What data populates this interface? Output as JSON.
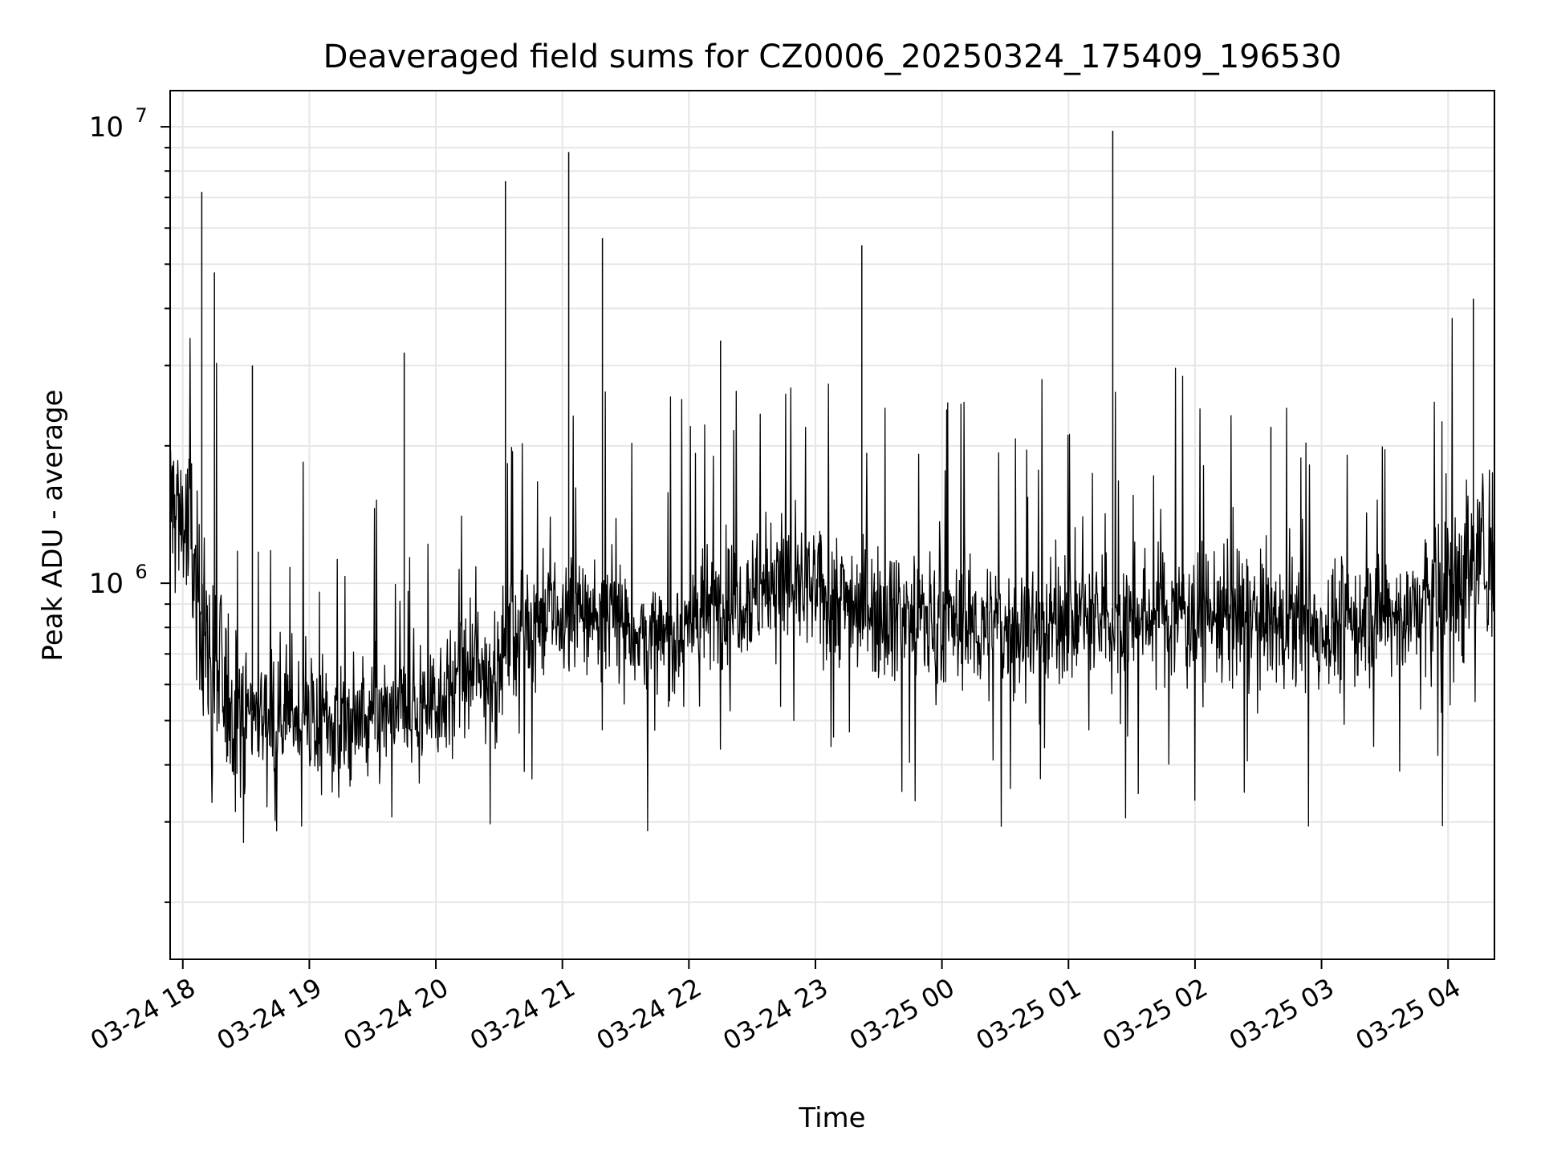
{
  "chart_data": {
    "type": "line",
    "title": "Deaveraged field sums for CZ0006_20250324_175409_196530",
    "xlabel": "Time",
    "ylabel": "Peak ADU - average",
    "x_scale": "time",
    "y_scale": "log",
    "xlim": [
      "2025-03-24 17:54",
      "2025-03-25 04:22"
    ],
    "ylim": [
      150000,
      12000000
    ],
    "x_tick_labels": [
      "03-24 18",
      "03-24 19",
      "03-24 20",
      "03-24 21",
      "03-24 22",
      "03-24 23",
      "03-25 00",
      "03-25 01",
      "03-25 02",
      "03-25 03",
      "03-25 04"
    ],
    "y_tick_labels": [
      {
        "base": "10",
        "exp": "6",
        "value": 1000000
      },
      {
        "base": "10",
        "exp": "7",
        "value": 10000000
      }
    ],
    "grid": true,
    "line_color": "#000000",
    "series": [
      {
        "name": "",
        "x": [
          "2025-03-24 17:54",
          "2025-03-24 18:00",
          "2025-03-24 18:05",
          "2025-03-24 18:10",
          "2025-03-24 18:15",
          "2025-03-24 18:20",
          "2025-03-24 18:30",
          "2025-03-24 18:40",
          "2025-03-24 18:50",
          "2025-03-24 19:00",
          "2025-03-24 19:15",
          "2025-03-24 19:30",
          "2025-03-24 19:45",
          "2025-03-24 20:00",
          "2025-03-24 20:15",
          "2025-03-24 20:30",
          "2025-03-24 20:35",
          "2025-03-24 20:45",
          "2025-03-24 21:00",
          "2025-03-24 21:15",
          "2025-03-24 21:30",
          "2025-03-24 21:45",
          "2025-03-24 22:00",
          "2025-03-24 22:15",
          "2025-03-24 22:30",
          "2025-03-24 22:45",
          "2025-03-24 23:00",
          "2025-03-24 23:15",
          "2025-03-24 23:30",
          "2025-03-24 23:45",
          "2025-03-25 00:00",
          "2025-03-25 00:15",
          "2025-03-25 00:30",
          "2025-03-25 00:45",
          "2025-03-25 01:00",
          "2025-03-25 01:15",
          "2025-03-25 01:30",
          "2025-03-25 01:45",
          "2025-03-25 02:00",
          "2025-03-25 02:15",
          "2025-03-25 02:30",
          "2025-03-25 02:45",
          "2025-03-25 03:00",
          "2025-03-25 03:15",
          "2025-03-25 03:30",
          "2025-03-25 03:45",
          "2025-03-25 04:00",
          "2025-03-25 04:10",
          "2025-03-25 04:22"
        ],
        "y": [
          1500000,
          1400000,
          1100000,
          800000,
          650000,
          560000,
          530000,
          520000,
          530000,
          500000,
          490000,
          500000,
          520000,
          560000,
          620000,
          660000,
          780000,
          820000,
          840000,
          860000,
          820000,
          720000,
          820000,
          900000,
          960000,
          1000000,
          950000,
          920000,
          880000,
          850000,
          820000,
          800000,
          790000,
          810000,
          840000,
          820000,
          840000,
          860000,
          870000,
          840000,
          820000,
          800000,
          790000,
          820000,
          850000,
          870000,
          950000,
          1100000,
          1200000
        ]
      }
    ],
    "annotations_spikes": [
      {
        "x": "2025-03-24 18:09",
        "y": 7200000
      },
      {
        "x": "2025-03-24 18:15",
        "y": 4800000
      },
      {
        "x": "2025-03-24 18:33",
        "y": 3000000
      },
      {
        "x": "2025-03-24 19:45",
        "y": 3200000
      },
      {
        "x": "2025-03-24 20:33",
        "y": 7600000
      },
      {
        "x": "2025-03-24 21:03",
        "y": 8800000
      },
      {
        "x": "2025-03-24 21:19",
        "y": 5700000
      },
      {
        "x": "2025-03-24 22:15",
        "y": 3400000
      },
      {
        "x": "2025-03-24 23:22",
        "y": 5500000
      },
      {
        "x": "2025-03-25 01:21",
        "y": 9800000
      },
      {
        "x": "2025-03-25 02:36",
        "y": 2200000
      },
      {
        "x": "2025-03-25 04:12",
        "y": 4200000
      }
    ]
  }
}
